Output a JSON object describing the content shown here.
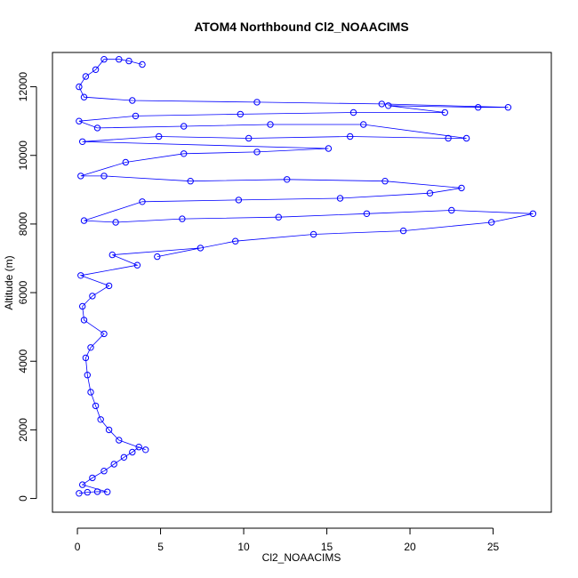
{
  "chart_data": {
    "type": "scatter",
    "title": "ATOM4 Northbound Cl2_NOAACIMS",
    "xlabel": "Cl2_NOAACIMS",
    "ylabel": "Altitude (m)",
    "xlim": [
      -1.5,
      28.5
    ],
    "ylim": [
      -400,
      13000
    ],
    "x_ticks": [
      0,
      5,
      10,
      15,
      20,
      25
    ],
    "y_ticks": [
      0,
      2000,
      4000,
      6000,
      8000,
      10000,
      12000
    ],
    "grid": false,
    "legend": "none",
    "series_color": "#0000ff",
    "line_color": "#0000ff",
    "marker": "open-circle",
    "series": [
      {
        "values": [
          [
            0.1,
            150
          ],
          [
            0.6,
            180
          ],
          [
            1.2,
            200
          ],
          [
            1.8,
            190
          ],
          [
            0.3,
            400
          ],
          [
            0.9,
            600
          ],
          [
            1.6,
            800
          ],
          [
            2.2,
            1000
          ],
          [
            2.8,
            1200
          ],
          [
            3.3,
            1350
          ],
          [
            3.7,
            1500
          ],
          [
            4.1,
            1420
          ],
          [
            2.5,
            1700
          ],
          [
            1.9,
            2000
          ],
          [
            1.4,
            2300
          ],
          [
            1.1,
            2700
          ],
          [
            0.8,
            3100
          ],
          [
            0.6,
            3600
          ],
          [
            0.5,
            4100
          ],
          [
            0.8,
            4400
          ],
          [
            1.6,
            4800
          ],
          [
            0.4,
            5200
          ],
          [
            0.3,
            5600
          ],
          [
            0.9,
            5900
          ],
          [
            1.9,
            6200
          ],
          [
            0.2,
            6500
          ],
          [
            3.6,
            6800
          ],
          [
            2.1,
            7100
          ],
          [
            7.4,
            7300
          ],
          [
            4.8,
            7050
          ],
          [
            9.5,
            7500
          ],
          [
            14.2,
            7700
          ],
          [
            19.6,
            7800
          ],
          [
            24.9,
            8050
          ],
          [
            27.4,
            8300
          ],
          [
            22.5,
            8400
          ],
          [
            17.4,
            8300
          ],
          [
            12.1,
            8200
          ],
          [
            6.3,
            8150
          ],
          [
            2.3,
            8050
          ],
          [
            0.4,
            8100
          ],
          [
            3.9,
            8650
          ],
          [
            9.7,
            8700
          ],
          [
            15.8,
            8750
          ],
          [
            21.2,
            8900
          ],
          [
            23.1,
            9050
          ],
          [
            18.5,
            9250
          ],
          [
            12.6,
            9300
          ],
          [
            6.8,
            9250
          ],
          [
            1.6,
            9400
          ],
          [
            0.2,
            9400
          ],
          [
            2.9,
            9800
          ],
          [
            6.4,
            10050
          ],
          [
            10.8,
            10100
          ],
          [
            15.1,
            10200
          ],
          [
            0.3,
            10400
          ],
          [
            4.9,
            10550
          ],
          [
            10.3,
            10500
          ],
          [
            16.4,
            10550
          ],
          [
            22.3,
            10500
          ],
          [
            23.4,
            10500
          ],
          [
            17.2,
            10900
          ],
          [
            11.6,
            10900
          ],
          [
            6.4,
            10850
          ],
          [
            1.2,
            10800
          ],
          [
            0.1,
            11000
          ],
          [
            3.5,
            11150
          ],
          [
            9.8,
            11200
          ],
          [
            16.6,
            11250
          ],
          [
            22.1,
            11250
          ],
          [
            18.7,
            11450
          ],
          [
            24.1,
            11400
          ],
          [
            25.9,
            11400
          ],
          [
            18.3,
            11500
          ],
          [
            10.8,
            11550
          ],
          [
            3.3,
            11600
          ],
          [
            0.4,
            11700
          ],
          [
            0.1,
            12000
          ],
          [
            0.5,
            12300
          ],
          [
            1.1,
            12500
          ],
          [
            1.6,
            12800
          ],
          [
            2.5,
            12800
          ],
          [
            3.1,
            12750
          ],
          [
            3.9,
            12650
          ]
        ]
      }
    ]
  }
}
